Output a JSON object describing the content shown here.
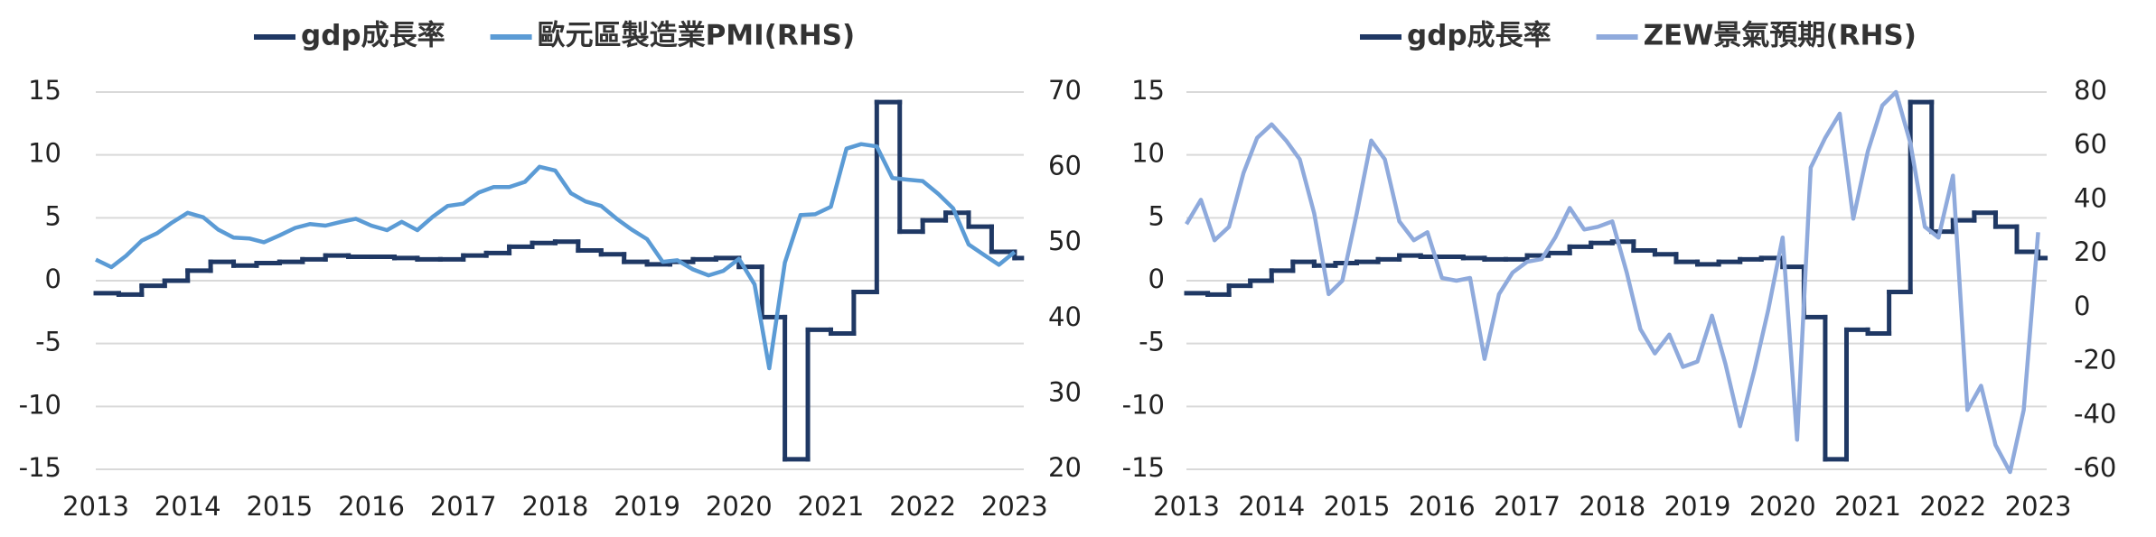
{
  "chart_data": [
    {
      "type": "line",
      "grid": true,
      "xlim": [
        2013,
        2023.1
      ],
      "xticks": [
        2013,
        2014,
        2015,
        2016,
        2017,
        2018,
        2019,
        2020,
        2021,
        2022,
        2023
      ],
      "ylim": [
        -15,
        15
      ],
      "yticks": [
        -15,
        -10,
        -5,
        0,
        5,
        10,
        15
      ],
      "y2lim": [
        20,
        70
      ],
      "y2ticks": [
        20,
        30,
        40,
        50,
        60,
        70
      ],
      "series": [
        {
          "name": "gdp成長率",
          "color": "#1f3864",
          "step": true,
          "x": [
            2013,
            2013.25,
            2013.5,
            2013.75,
            2014,
            2014.25,
            2014.5,
            2014.75,
            2015,
            2015.25,
            2015.5,
            2015.75,
            2016,
            2016.25,
            2016.5,
            2016.75,
            2017,
            2017.25,
            2017.5,
            2017.75,
            2018,
            2018.25,
            2018.5,
            2018.75,
            2019,
            2019.25,
            2019.5,
            2019.75,
            2020,
            2020.25,
            2020.5,
            2020.75,
            2021,
            2021.25,
            2021.5,
            2021.75,
            2022,
            2022.25,
            2022.5,
            2022.75,
            2023
          ],
          "values": [
            -1.0,
            -1.1,
            -0.4,
            0.0,
            0.8,
            1.5,
            1.2,
            1.4,
            1.5,
            1.7,
            2.0,
            1.9,
            1.9,
            1.8,
            1.7,
            1.7,
            2.0,
            2.2,
            2.7,
            3.0,
            3.1,
            2.4,
            2.1,
            1.5,
            1.3,
            1.5,
            1.7,
            1.8,
            1.1,
            -2.9,
            -14.2,
            -3.9,
            -4.2,
            -0.9,
            14.2,
            3.9,
            4.8,
            5.4,
            4.3,
            2.3,
            1.8
          ]
        },
        {
          "name": "歐元區製造業PMI(RHS)",
          "color": "#5b9bd5",
          "axis": "y2",
          "x": [
            2013,
            2013.17,
            2013.33,
            2013.5,
            2013.67,
            2013.83,
            2014,
            2014.17,
            2014.33,
            2014.5,
            2014.67,
            2014.83,
            2015,
            2015.17,
            2015.33,
            2015.5,
            2015.67,
            2015.83,
            2016,
            2016.17,
            2016.33,
            2016.5,
            2016.67,
            2016.83,
            2017,
            2017.17,
            2017.33,
            2017.5,
            2017.67,
            2017.83,
            2018,
            2018.17,
            2018.33,
            2018.5,
            2018.67,
            2018.83,
            2019,
            2019.17,
            2019.33,
            2019.5,
            2019.67,
            2019.83,
            2020,
            2020.17,
            2020.33,
            2020.5,
            2020.67,
            2020.83,
            2021,
            2021.17,
            2021.33,
            2021.5,
            2021.67,
            2021.83,
            2022,
            2022.17,
            2022.33,
            2022.5,
            2022.67,
            2022.83,
            2023
          ],
          "values": [
            47.8,
            46.8,
            48.3,
            50.3,
            51.3,
            52.7,
            54.0,
            53.4,
            51.8,
            50.7,
            50.6,
            50.1,
            51.0,
            52.0,
            52.5,
            52.3,
            52.8,
            53.2,
            52.3,
            51.7,
            52.8,
            51.7,
            53.5,
            54.9,
            55.2,
            56.7,
            57.4,
            57.4,
            58.1,
            60.1,
            59.6,
            56.6,
            55.5,
            54.9,
            53.2,
            51.8,
            50.5,
            47.5,
            47.7,
            46.5,
            45.7,
            46.3,
            47.9,
            44.5,
            33.4,
            47.4,
            53.7,
            53.8,
            54.8,
            62.5,
            63.1,
            62.8,
            58.6,
            58.4,
            58.2,
            56.5,
            54.6,
            49.8,
            48.4,
            47.1,
            48.8
          ]
        }
      ]
    },
    {
      "type": "line",
      "grid": true,
      "xlim": [
        2013,
        2023.1
      ],
      "xticks": [
        2013,
        2014,
        2015,
        2016,
        2017,
        2018,
        2019,
        2020,
        2021,
        2022,
        2023
      ],
      "ylim": [
        -15,
        15
      ],
      "yticks": [
        -15,
        -10,
        -5,
        0,
        5,
        10,
        15
      ],
      "y2lim": [
        -60,
        80
      ],
      "y2ticks": [
        -60,
        -40,
        -20,
        0,
        20,
        40,
        60,
        80
      ],
      "series": [
        {
          "name": "gdp成長率",
          "color": "#1f3864",
          "step": true,
          "x": [
            2013,
            2013.25,
            2013.5,
            2013.75,
            2014,
            2014.25,
            2014.5,
            2014.75,
            2015,
            2015.25,
            2015.5,
            2015.75,
            2016,
            2016.25,
            2016.5,
            2016.75,
            2017,
            2017.25,
            2017.5,
            2017.75,
            2018,
            2018.25,
            2018.5,
            2018.75,
            2019,
            2019.25,
            2019.5,
            2019.75,
            2020,
            2020.25,
            2020.5,
            2020.75,
            2021,
            2021.25,
            2021.5,
            2021.75,
            2022,
            2022.25,
            2022.5,
            2022.75,
            2023
          ],
          "values": [
            -1.0,
            -1.1,
            -0.4,
            0.0,
            0.8,
            1.5,
            1.2,
            1.4,
            1.5,
            1.7,
            2.0,
            1.9,
            1.9,
            1.8,
            1.7,
            1.7,
            2.0,
            2.2,
            2.7,
            3.0,
            3.1,
            2.4,
            2.1,
            1.5,
            1.3,
            1.5,
            1.7,
            1.8,
            1.1,
            -2.9,
            -14.2,
            -3.9,
            -4.2,
            -0.9,
            14.2,
            3.9,
            4.8,
            5.4,
            4.3,
            2.3,
            1.8
          ]
        },
        {
          "name": "ZEW景氣預期(RHS)",
          "color": "#8faadc",
          "axis": "y2",
          "x": [
            2013,
            2013.17,
            2013.33,
            2013.5,
            2013.67,
            2013.83,
            2014,
            2014.17,
            2014.33,
            2014.5,
            2014.67,
            2014.83,
            2015,
            2015.17,
            2015.33,
            2015.5,
            2015.67,
            2015.83,
            2016,
            2016.17,
            2016.33,
            2016.5,
            2016.67,
            2016.83,
            2017,
            2017.17,
            2017.33,
            2017.5,
            2017.67,
            2017.83,
            2018,
            2018.17,
            2018.33,
            2018.5,
            2018.67,
            2018.83,
            2019,
            2019.17,
            2019.33,
            2019.5,
            2019.67,
            2019.83,
            2020,
            2020.17,
            2020.33,
            2020.5,
            2020.67,
            2020.83,
            2021,
            2021.17,
            2021.33,
            2021.5,
            2021.67,
            2021.83,
            2022,
            2022.17,
            2022.33,
            2022.5,
            2022.67,
            2022.83,
            2023
          ],
          "values": [
            31,
            40,
            25,
            30,
            50,
            63,
            68,
            62,
            55,
            35,
            5,
            10,
            35,
            62,
            55,
            32,
            25,
            28,
            11,
            10,
            11,
            -19,
            5,
            13,
            17,
            18,
            26,
            37,
            29,
            30,
            32,
            13,
            -8,
            -17,
            -10,
            -22,
            -20,
            -3,
            -21,
            -44,
            -23,
            -1,
            26,
            -49,
            52,
            63,
            72,
            33,
            58,
            75,
            80,
            61,
            30,
            26,
            49,
            -38,
            -29,
            -51,
            -61,
            -38,
            28
          ]
        }
      ]
    }
  ]
}
